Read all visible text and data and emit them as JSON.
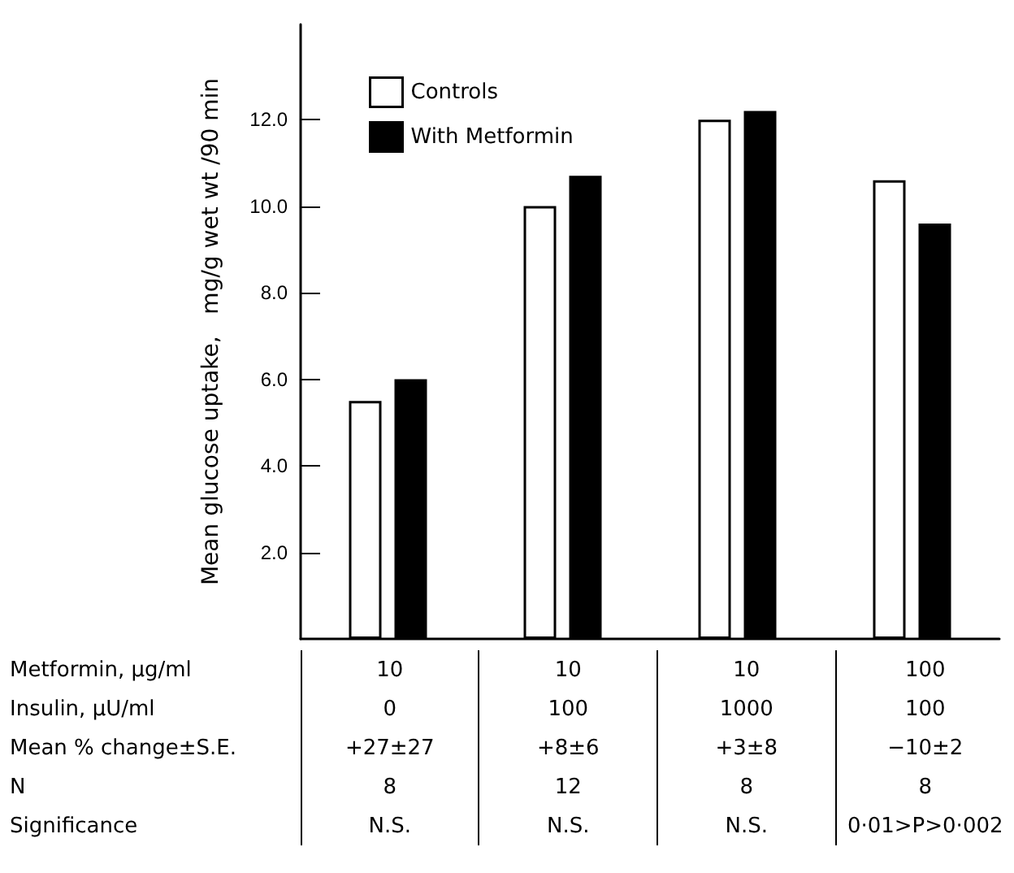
{
  "chart_data": {
    "type": "bar",
    "ylabel": "Mean glucose uptake,   mg/g wet wt /90 min",
    "categories": [
      null,
      null,
      null,
      null
    ],
    "series": [
      {
        "name": "Controls",
        "color": "#ffffff",
        "values": [
          5.5,
          10.0,
          12.0,
          10.6
        ]
      },
      {
        "name": "With Metformin",
        "color": "#000000",
        "values": [
          6.0,
          10.7,
          12.2,
          9.6
        ]
      }
    ],
    "ylim": [
      0,
      14.2
    ],
    "yticks": [
      {
        "value": 2,
        "label": "2.0"
      },
      {
        "value": 4,
        "label": "4.0"
      },
      {
        "value": 6,
        "label": "6.0"
      },
      {
        "value": 8,
        "label": "8.0"
      },
      {
        "value": 10,
        "label": "10.0"
      },
      {
        "value": 12,
        "label": "12.0"
      }
    ],
    "grid": false,
    "legend": "top left",
    "annotations": [
      "Metformin,  μg/ml",
      "10",
      "10",
      "10",
      "100",
      "Insulin,  μU/ml",
      "0",
      "100",
      "1000",
      "100",
      "Mean % change±S.E.",
      "+27±27",
      "+8±6",
      "+3±8",
      "−10±2",
      "N",
      "8",
      "12",
      "8",
      "8",
      "Significance",
      "N.S.",
      "N.S.",
      "N.S.",
      "0·01>P>0·002"
    ]
  }
}
